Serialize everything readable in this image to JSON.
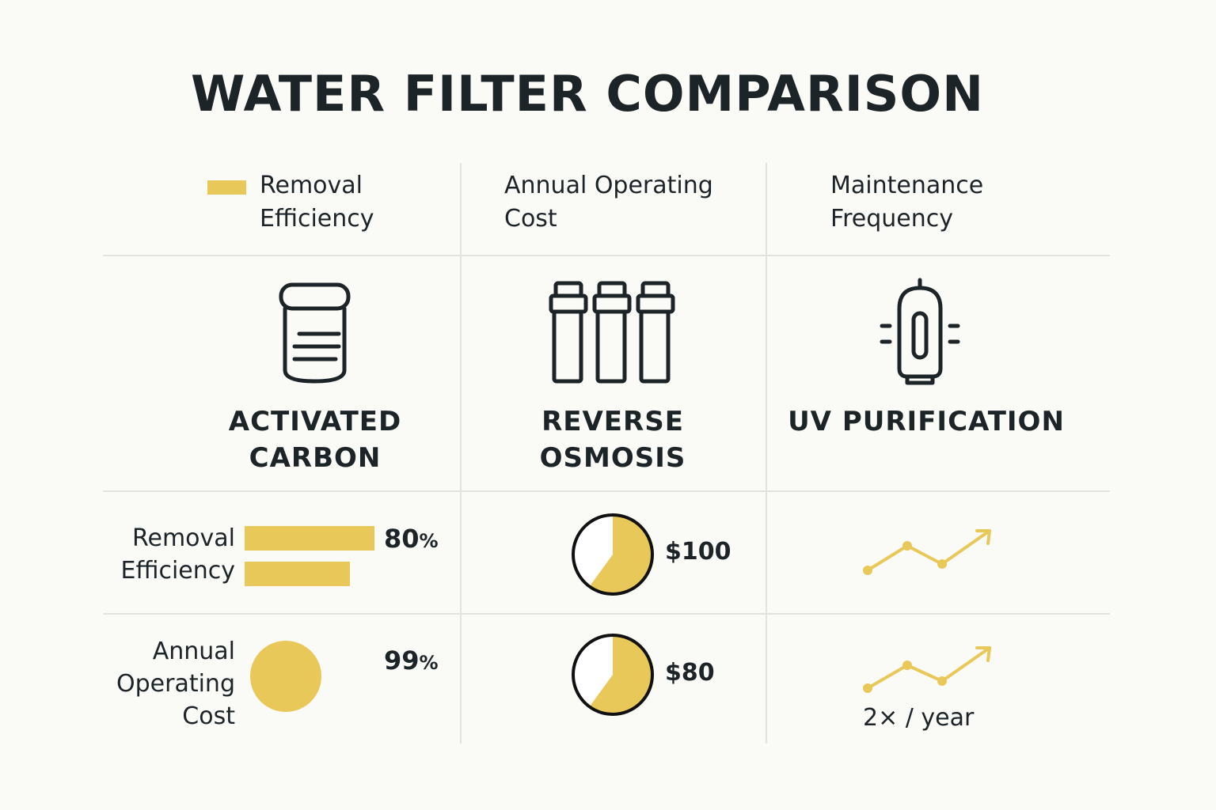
{
  "title": "WATER FILTER COMPARISON",
  "colors": {
    "accent": "#e9c85a",
    "ink": "#1d2428",
    "divider": "#e2e2e0",
    "background": "#fafaf7"
  },
  "header": {
    "legend_label": "Removal Efficiency",
    "col2": "Annual Operating Cost",
    "col3": "Maintenance Frequency"
  },
  "filters": [
    {
      "name": "ACTIVATED CARBON",
      "icon": "carbon-cartridge-icon"
    },
    {
      "name": "REVERSE OSMOSIS",
      "icon": "ro-filter-stages-icon"
    },
    {
      "name": "UV PURIFICATION",
      "icon": "uv-lamp-icon"
    }
  ],
  "rows": {
    "removal": {
      "label": "Removal Efficiency",
      "bar_values": [
        0.8,
        0.65
      ],
      "percent": "80",
      "pct_sign": "%",
      "cost": "$100",
      "cost_pie_fraction": 0.6,
      "trend_icon": "trend-up-icon"
    },
    "annual": {
      "label": "Annual Operating Cost",
      "percent": "99",
      "pct_sign": "%",
      "cost": "$80",
      "cost_pie_fraction": 0.6,
      "trend_icon": "trend-up-icon",
      "frequency": "2× / year"
    }
  }
}
